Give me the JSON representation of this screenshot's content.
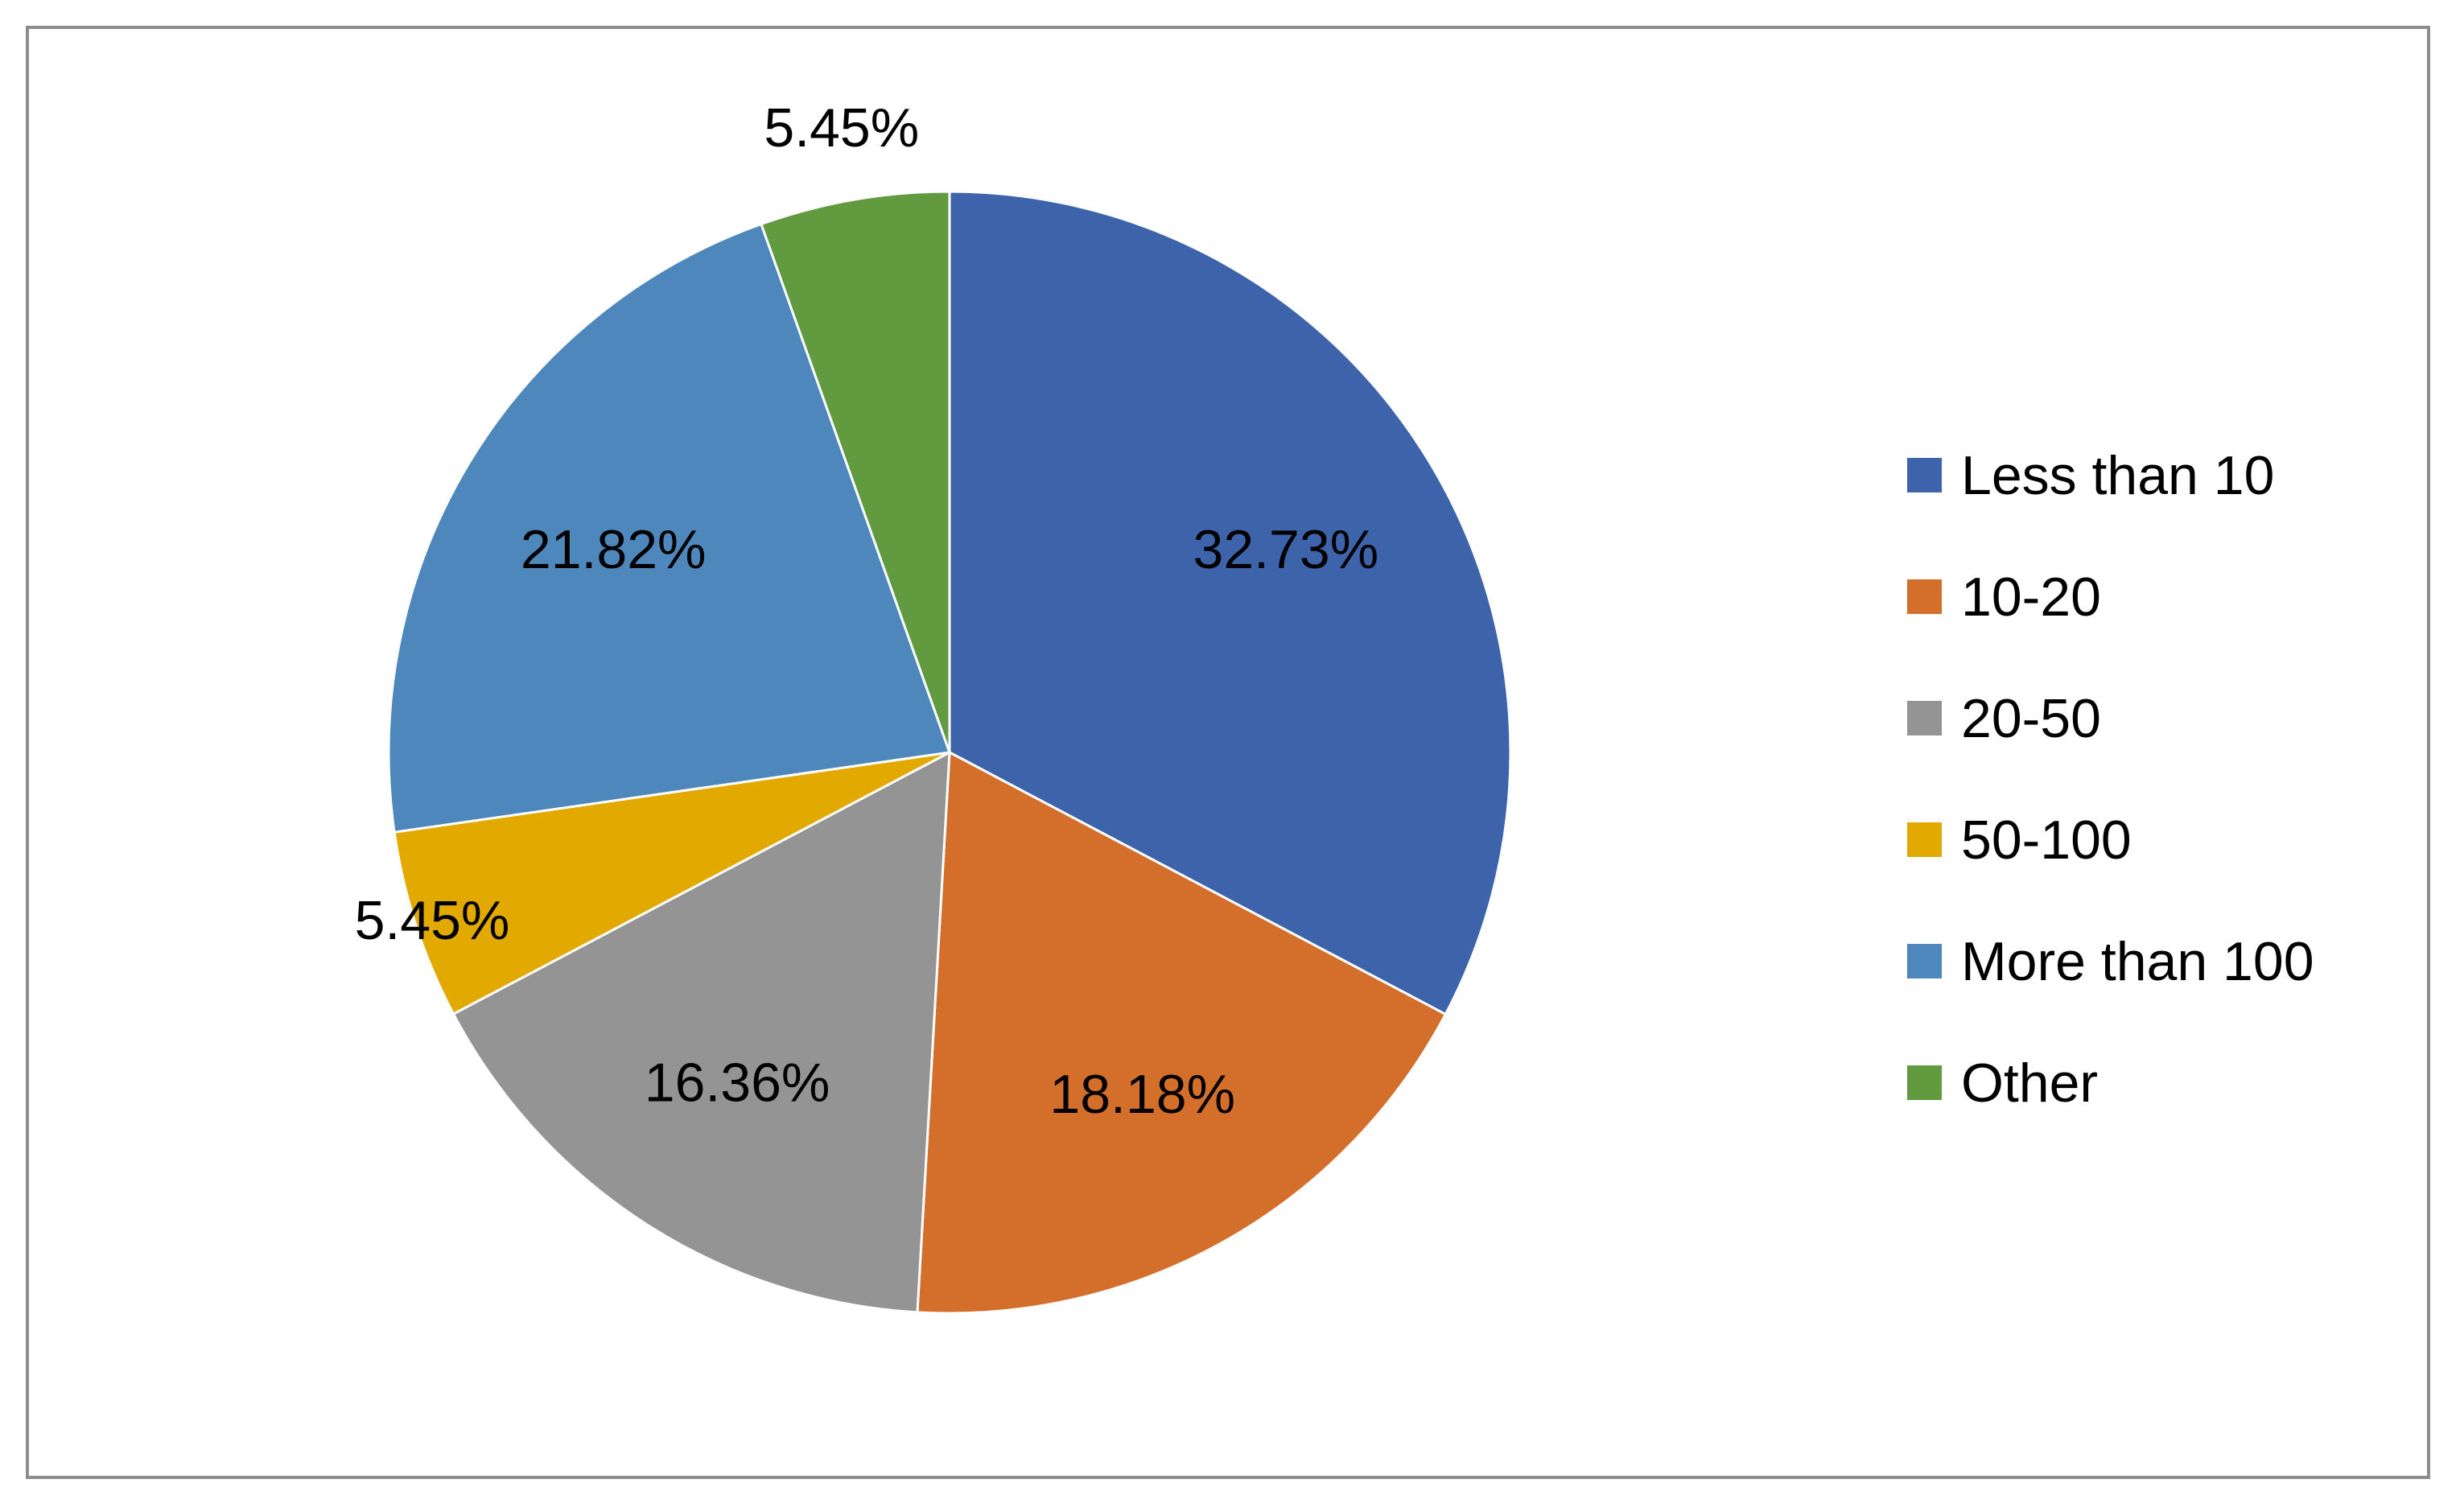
{
  "chart_data": {
    "type": "pie",
    "title": "",
    "categories": [
      "Less than 10",
      "10-20",
      "20-50",
      "50-100",
      "More than 100",
      "Other"
    ],
    "values": [
      32.73,
      18.18,
      16.36,
      5.45,
      21.82,
      5.45
    ],
    "data_labels": [
      "32.73%",
      "18.18%",
      "16.36%",
      "5.45%",
      "21.82%",
      "5.45%"
    ],
    "colors": [
      "#3d64aa",
      "#d46e2b",
      "#949494",
      "#e2a900",
      "#4e87bb",
      "#629a40"
    ],
    "start_angle": "12 o'clock",
    "direction": "clockwise",
    "legend_position": "right"
  }
}
